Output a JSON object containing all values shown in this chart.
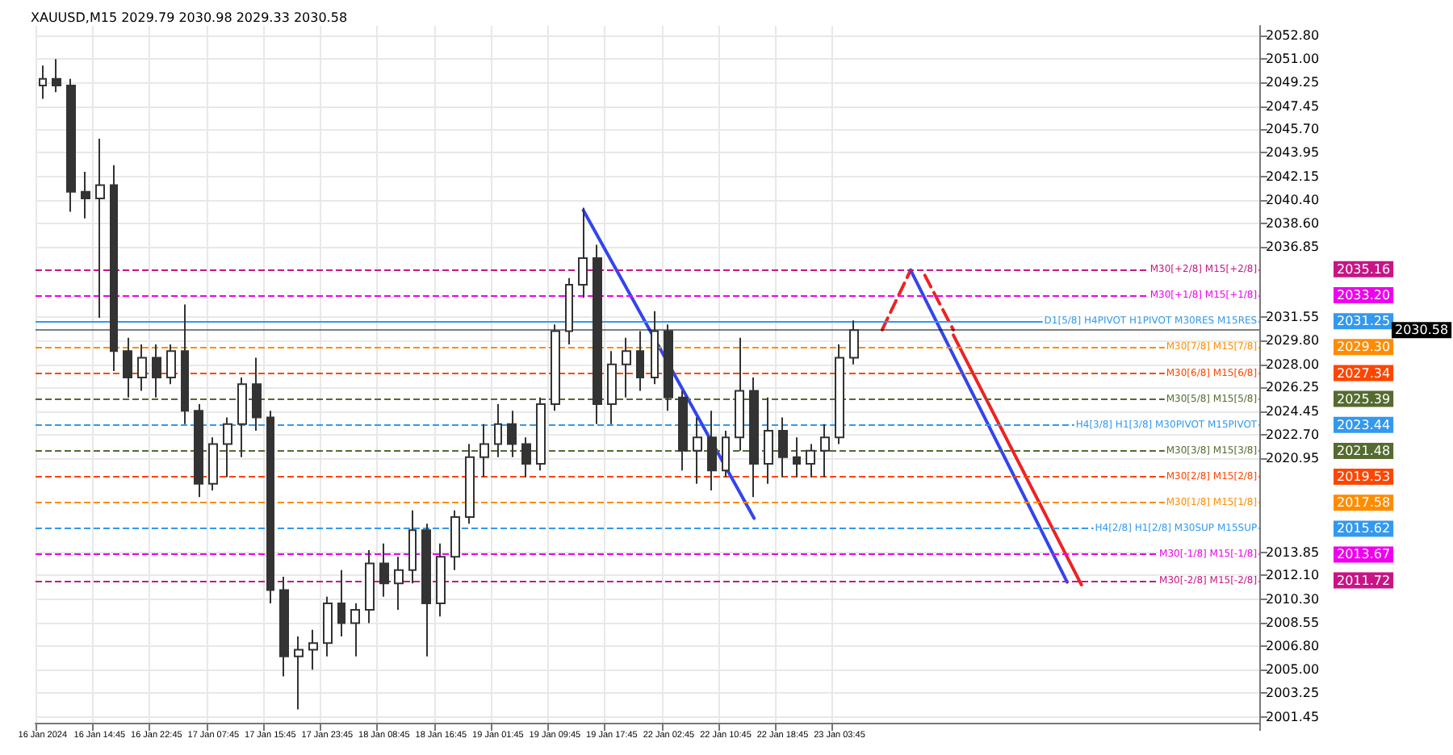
{
  "chart_data": {
    "type": "candlestick",
    "title": "XAUUSD,M15 2029.79 2030.98 2029.33 2030.58",
    "color": "#333333",
    "categories": [
      "16 Jan 2024",
      null,
      null,
      null,
      "16 Jan 14:45",
      null,
      null,
      null,
      "16 Jan 22:45",
      null,
      null,
      null,
      "17 Jan 07:45",
      null,
      null,
      null,
      "17 Jan 15:45",
      null,
      null,
      null,
      "17 Jan 23:45",
      null,
      null,
      null,
      "18 Jan 08:45",
      null,
      null,
      null,
      "18 Jan 16:45",
      null,
      null,
      null,
      "19 Jan 01:45",
      null,
      null,
      null,
      "19 Jan 09:45",
      null,
      null,
      null,
      "19 Jan 17:45",
      null,
      null,
      null,
      "22 Jan 02:45",
      null,
      null,
      null,
      "22 Jan 10:45",
      null,
      null,
      null,
      "22 Jan 18:45",
      null,
      null,
      null,
      "23 Jan 03:45",
      null,
      null,
      null,
      null,
      null,
      null,
      null,
      null,
      null,
      null,
      null,
      null,
      null,
      null,
      null,
      null,
      null,
      null,
      null,
      null,
      null,
      null,
      null,
      null,
      null,
      null,
      null,
      null,
      null
    ],
    "ohlc": [
      [
        2049.0,
        2050.5,
        2048.0,
        2049.5
      ],
      [
        2049.5,
        2051.0,
        2048.5,
        2049.0
      ],
      [
        2049.0,
        2049.5,
        2039.5,
        2041.0
      ],
      [
        2041.0,
        2042.5,
        2039.0,
        2040.5
      ],
      [
        2040.5,
        2045.0,
        2031.5,
        2041.5
      ],
      [
        2041.5,
        2043.0,
        2027.5,
        2029.0
      ],
      [
        2029.0,
        2030.0,
        2025.5,
        2027.0
      ],
      [
        2027.0,
        2029.5,
        2026.0,
        2028.5
      ],
      [
        2028.5,
        2029.5,
        2025.5,
        2027.0
      ],
      [
        2027.0,
        2029.5,
        2026.5,
        2029.0
      ],
      [
        2029.0,
        2032.5,
        2023.5,
        2024.5
      ],
      [
        2024.5,
        2025.0,
        2018.0,
        2019.0
      ],
      [
        2019.0,
        2022.5,
        2018.5,
        2022.0
      ],
      [
        2022.0,
        2024.0,
        2019.5,
        2023.5
      ],
      [
        2023.5,
        2027.0,
        2021.0,
        2026.5
      ],
      [
        2026.5,
        2028.5,
        2023.0,
        2024.0
      ],
      [
        2024.0,
        2024.5,
        2010.0,
        2011.0
      ],
      [
        2011.0,
        2012.0,
        2004.5,
        2006.0
      ],
      [
        2006.0,
        2007.5,
        2002.0,
        2006.5
      ],
      [
        2006.5,
        2008.0,
        2005.0,
        2007.0
      ],
      [
        2007.0,
        2010.5,
        2006.0,
        2010.0
      ],
      [
        2010.0,
        2012.5,
        2007.5,
        2008.5
      ],
      [
        2008.5,
        2010.0,
        2006.0,
        2009.5
      ],
      [
        2009.5,
        2014.0,
        2008.5,
        2013.0
      ],
      [
        2013.0,
        2014.5,
        2010.5,
        2011.5
      ],
      [
        2011.5,
        2013.5,
        2009.5,
        2012.5
      ],
      [
        2012.5,
        2017.0,
        2011.5,
        2015.5
      ],
      [
        2015.5,
        2016.0,
        2006.0,
        2010.0
      ],
      [
        2010.0,
        2014.5,
        2009.0,
        2013.5
      ],
      [
        2013.5,
        2017.0,
        2012.5,
        2016.5
      ],
      [
        2016.5,
        2022.0,
        2016.0,
        2021.0
      ],
      [
        2021.0,
        2023.5,
        2019.5,
        2022.0
      ],
      [
        2022.0,
        2025.0,
        2021.0,
        2023.5
      ],
      [
        2023.5,
        2024.5,
        2021.0,
        2022.0
      ],
      [
        2022.0,
        2022.5,
        2019.5,
        2020.5
      ],
      [
        2020.5,
        2025.5,
        2020.0,
        2025.0
      ],
      [
        2025.0,
        2031.0,
        2024.5,
        2030.5
      ],
      [
        2030.5,
        2034.5,
        2029.5,
        2034.0
      ],
      [
        2034.0,
        2039.8,
        2033.0,
        2036.0
      ],
      [
        2036.0,
        2037.0,
        2023.5,
        2025.0
      ],
      [
        2025.0,
        2029.0,
        2023.5,
        2028.0
      ],
      [
        2028.0,
        2030.0,
        2025.5,
        2029.0
      ],
      [
        2029.0,
        2030.5,
        2026.0,
        2027.0
      ],
      [
        2027.0,
        2032.0,
        2026.5,
        2030.5
      ],
      [
        2030.5,
        2031.0,
        2024.5,
        2025.5
      ],
      [
        2025.5,
        2026.0,
        2020.0,
        2021.5
      ],
      [
        2021.5,
        2024.0,
        2019.0,
        2022.5
      ],
      [
        2022.5,
        2024.5,
        2018.5,
        2020.0
      ],
      [
        2020.0,
        2023.0,
        2019.5,
        2022.5
      ],
      [
        2022.5,
        2030.0,
        2021.5,
        2026.0
      ],
      [
        2026.0,
        2027.0,
        2018.0,
        2020.5
      ],
      [
        2020.5,
        2025.5,
        2019.0,
        2023.0
      ],
      [
        2023.0,
        2024.0,
        2019.5,
        2021.0
      ],
      [
        2021.0,
        2022.5,
        2019.5,
        2020.5
      ],
      [
        2020.5,
        2022.0,
        2019.5,
        2021.5
      ],
      [
        2021.5,
        2023.5,
        2019.5,
        2022.5
      ],
      [
        2022.5,
        2029.5,
        2022.0,
        2028.5
      ],
      [
        2028.5,
        2031.3,
        2028.0,
        2030.58
      ],
      null,
      null,
      null,
      null,
      null,
      null,
      null,
      null,
      null,
      null,
      null,
      null,
      null,
      null,
      null,
      null,
      null,
      null,
      null,
      null,
      null,
      null,
      null,
      null,
      null,
      null,
      null,
      null
    ],
    "series": [
      {
        "type": "line",
        "color": "#3344ee",
        "line_style": "solid",
        "values": [
          null,
          null,
          null,
          null,
          null,
          null,
          null,
          null,
          null,
          null,
          null,
          null,
          null,
          null,
          null,
          null,
          null,
          null,
          null,
          null,
          null,
          null,
          null,
          null,
          null,
          null,
          null,
          null,
          null,
          null,
          null,
          null,
          null,
          null,
          null,
          null,
          null,
          null,
          2039.6,
          null,
          null,
          null,
          null,
          null,
          null,
          null,
          null,
          null,
          null,
          null,
          2016.4,
          null,
          null,
          null,
          null,
          null,
          null,
          null,
          null,
          null,
          null,
          null,
          null,
          null,
          null,
          null,
          null,
          null,
          null,
          null,
          null,
          null,
          null,
          null,
          null,
          null,
          null,
          null,
          null,
          null,
          null,
          null,
          null,
          null,
          null,
          null
        ]
      },
      {
        "type": "line",
        "color": "#ee2222",
        "line_style": "dashed",
        "values": [
          null,
          null,
          null,
          null,
          null,
          null,
          null,
          null,
          null,
          null,
          null,
          null,
          null,
          null,
          null,
          null,
          null,
          null,
          null,
          null,
          null,
          null,
          null,
          null,
          null,
          null,
          null,
          null,
          null,
          null,
          null,
          null,
          null,
          null,
          null,
          null,
          null,
          null,
          null,
          null,
          null,
          null,
          null,
          null,
          null,
          null,
          null,
          null,
          null,
          null,
          null,
          null,
          null,
          null,
          null,
          null,
          null,
          null,
          null,
          2030.6,
          null,
          2035.1,
          null,
          null,
          null,
          null,
          null,
          null,
          null,
          null,
          null,
          null,
          null,
          null,
          null,
          null,
          null,
          null,
          null,
          null,
          null,
          null,
          null,
          null,
          null,
          null
        ]
      },
      {
        "type": "line",
        "color": "#ee2222",
        "line_style": "dashed",
        "values": [
          null,
          null,
          null,
          null,
          null,
          null,
          null,
          null,
          null,
          null,
          null,
          null,
          null,
          null,
          null,
          null,
          null,
          null,
          null,
          null,
          null,
          null,
          null,
          null,
          null,
          null,
          null,
          null,
          null,
          null,
          null,
          null,
          null,
          null,
          null,
          null,
          null,
          null,
          null,
          null,
          null,
          null,
          null,
          null,
          null,
          null,
          null,
          null,
          null,
          null,
          null,
          null,
          null,
          null,
          null,
          null,
          null,
          null,
          null,
          null,
          null,
          null,
          2034.7,
          null,
          2030.6,
          null,
          null,
          null,
          null,
          null,
          null,
          null,
          null,
          null,
          null,
          null,
          null,
          null,
          null,
          null,
          null,
          null,
          null,
          null,
          null,
          null
        ]
      },
      {
        "type": "line",
        "color": "#ee2222",
        "line_style": "solid",
        "values": [
          null,
          null,
          null,
          null,
          null,
          null,
          null,
          null,
          null,
          null,
          null,
          null,
          null,
          null,
          null,
          null,
          null,
          null,
          null,
          null,
          null,
          null,
          null,
          null,
          null,
          null,
          null,
          null,
          null,
          null,
          null,
          null,
          null,
          null,
          null,
          null,
          null,
          null,
          null,
          null,
          null,
          null,
          null,
          null,
          null,
          null,
          null,
          null,
          null,
          null,
          null,
          null,
          null,
          null,
          null,
          null,
          null,
          null,
          null,
          null,
          null,
          null,
          null,
          null,
          2030.2,
          null,
          null,
          null,
          null,
          null,
          null,
          null,
          null,
          2011.4,
          null,
          null,
          null,
          null,
          null,
          null,
          null,
          null,
          null,
          null,
          null,
          null
        ]
      },
      {
        "type": "line",
        "color": "#3344ee",
        "line_style": "solid",
        "values": [
          null,
          null,
          null,
          null,
          null,
          null,
          null,
          null,
          null,
          null,
          null,
          null,
          null,
          null,
          null,
          null,
          null,
          null,
          null,
          null,
          null,
          null,
          null,
          null,
          null,
          null,
          null,
          null,
          null,
          null,
          null,
          null,
          null,
          null,
          null,
          null,
          null,
          null,
          null,
          null,
          null,
          null,
          null,
          null,
          null,
          null,
          null,
          null,
          null,
          null,
          null,
          null,
          null,
          null,
          null,
          null,
          null,
          null,
          null,
          null,
          null,
          2035.1,
          null,
          null,
          null,
          null,
          null,
          null,
          null,
          null,
          null,
          null,
          2011.6,
          null,
          null,
          null,
          null,
          null,
          null,
          null,
          null,
          null,
          null,
          null,
          null,
          null
        ]
      }
    ],
    "ylim": [
      2001.0,
      2053.5
    ],
    "yticks": [
      {
        "value": 2052.8,
        "label": "2052.80"
      },
      {
        "value": 2051,
        "label": "2051.00"
      },
      {
        "value": 2049.25,
        "label": "2049.25"
      },
      {
        "value": 2047.45,
        "label": "2047.45"
      },
      {
        "value": 2045.7,
        "label": "2045.70"
      },
      {
        "value": 2043.95,
        "label": "2043.95"
      },
      {
        "value": 2042.15,
        "label": "2042.15"
      },
      {
        "value": 2040.4,
        "label": "2040.40"
      },
      {
        "value": 2038.6,
        "label": "2038.60"
      },
      {
        "value": 2036.85,
        "label": "2036.85"
      },
      {
        "value": 2031.55,
        "label": "2031.55"
      },
      {
        "value": 2029.8,
        "label": "2029.80"
      },
      {
        "value": 2028,
        "label": "2028.00"
      },
      {
        "value": 2026.25,
        "label": "2026.25"
      },
      {
        "value": 2024.45,
        "label": "2024.45"
      },
      {
        "value": 2022.7,
        "label": "2022.70"
      },
      {
        "value": 2020.95,
        "label": "2020.95"
      },
      {
        "value": 2013.85,
        "label": "2013.85"
      },
      {
        "value": 2012.1,
        "label": "2012.10"
      },
      {
        "value": 2010.3,
        "label": "2010.30"
      },
      {
        "value": 2008.55,
        "label": "2008.55"
      },
      {
        "value": 2006.8,
        "label": "2006.80"
      },
      {
        "value": 2005,
        "label": "2005.00"
      },
      {
        "value": 2003.25,
        "label": "2003.25"
      },
      {
        "value": 2001.45,
        "label": "2001.45"
      }
    ],
    "ref_lines": [
      {
        "axis": "y",
        "value": 2035.16,
        "label": "M30[+2/8] M15[+2/8]",
        "color": "#c71585",
        "line_style": "dashed"
      },
      {
        "axis": "y",
        "value": 2033.2,
        "label": "M30[+1/8] M15[+1/8]",
        "color": "#ee00ee",
        "line_style": "dashed"
      },
      {
        "axis": "y",
        "value": 2031.25,
        "label": "D1[5/8] H4PIVOT H1PIVOT M30RES M15RES",
        "color": "#3399ee",
        "line_style": "solid"
      },
      {
        "axis": "y",
        "value": 2030.58,
        "label": null,
        "color": "#000000",
        "line_style": "solid"
      },
      {
        "axis": "y",
        "value": 2029.3,
        "label": "M30[7/8] M15[7/8]",
        "color": "#ff8c00",
        "line_style": "dashed"
      },
      {
        "axis": "y",
        "value": 2027.34,
        "label": "M30[6/8] M15[6/8]",
        "color": "#ff4500",
        "line_style": "dashed"
      },
      {
        "axis": "y",
        "value": 2025.39,
        "label": "M30[5/8] M15[5/8]",
        "color": "#556b2f",
        "line_style": "dashed"
      },
      {
        "axis": "y",
        "value": 2023.44,
        "label": "H4[3/8] H1[3/8] M30PIVOT M15PIVOT",
        "color": "#3399ee",
        "line_style": "dashed"
      },
      {
        "axis": "y",
        "value": 2021.48,
        "label": "M30[3/8] M15[3/8]",
        "color": "#556b2f",
        "line_style": "dashed"
      },
      {
        "axis": "y",
        "value": 2019.53,
        "label": "M30[2/8] M15[2/8]",
        "color": "#ff4500",
        "line_style": "dashed"
      },
      {
        "axis": "y",
        "value": 2017.58,
        "label": "M30[1/8] M15[1/8]",
        "color": "#ff8c00",
        "line_style": "dashed"
      },
      {
        "axis": "y",
        "value": 2015.62,
        "label": "H4[2/8] H1[2/8] M30SUP M15SUP",
        "color": "#3399ee",
        "line_style": "dashed"
      },
      {
        "axis": "y",
        "value": 2013.67,
        "label": "M30[-1/8] M15[-1/8]",
        "color": "#ee00ee",
        "line_style": "dashed"
      },
      {
        "axis": "y",
        "value": 2011.72,
        "label": "M30[-2/8] M15[-2/8]",
        "color": "#c71585",
        "line_style": "dashed"
      }
    ],
    "annotations": [
      "2035.16",
      "2033.20",
      "2031.25",
      "2030.58",
      "2029.30",
      "2027.34",
      "2025.39",
      "2023.44",
      "2021.48",
      "2019.53",
      "2017.58",
      "2015.62",
      "2013.67",
      "2011.72"
    ],
    "grid": true
  }
}
